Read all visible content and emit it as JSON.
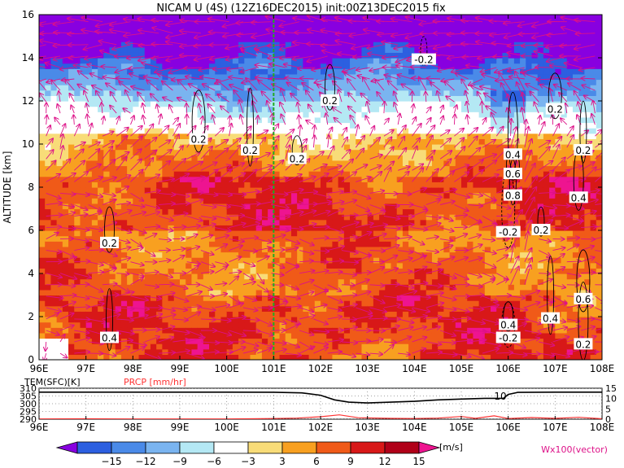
{
  "title": "NICAM U (4S) (12Z16DEC2015) init:00Z13DEC2015 fix",
  "chart_data": [
    {
      "type": "heatmap",
      "variable": "U",
      "x_ticks": [
        "96E",
        "97E",
        "98E",
        "99E",
        "100E",
        "101E",
        "102E",
        "103E",
        "104E",
        "105E",
        "106E",
        "107E",
        "108E"
      ],
      "x_range": [
        96,
        108
      ],
      "ylabel": "ALTITUDE [km]",
      "y_ticks": [
        "0",
        "2",
        "4",
        "6",
        "8",
        "10",
        "12",
        "14",
        "16"
      ],
      "y_range": [
        0,
        16
      ],
      "vertical_reference_line_lon": 101.0,
      "vertical_reference_line_color": "#22aa22",
      "contour_labels": [
        {
          "text": "-0.2",
          "lon": 104.2,
          "alt": 13.9
        },
        {
          "text": "0.2",
          "lon": 102.2,
          "alt": 12.0
        },
        {
          "text": "0.2",
          "lon": 99.4,
          "alt": 10.2
        },
        {
          "text": "0.2",
          "lon": 100.5,
          "alt": 9.7
        },
        {
          "text": "0.2",
          "lon": 101.5,
          "alt": 9.3
        },
        {
          "text": "0.2",
          "lon": 107.0,
          "alt": 11.6
        },
        {
          "text": "0.2",
          "lon": 107.6,
          "alt": 9.7
        },
        {
          "text": "0.4",
          "lon": 106.1,
          "alt": 9.5
        },
        {
          "text": "0.6",
          "lon": 106.1,
          "alt": 8.6
        },
        {
          "text": "0.8",
          "lon": 106.1,
          "alt": 7.6
        },
        {
          "text": "0.4",
          "lon": 107.5,
          "alt": 7.5
        },
        {
          "text": "-0.2",
          "lon": 106.0,
          "alt": 5.9
        },
        {
          "text": "0.2",
          "lon": 106.7,
          "alt": 6.0
        },
        {
          "text": "0.2",
          "lon": 97.5,
          "alt": 5.4
        },
        {
          "text": "0.6",
          "lon": 107.6,
          "alt": 2.8
        },
        {
          "text": "0.4",
          "lon": 106.9,
          "alt": 1.9
        },
        {
          "text": "0.4",
          "lon": 106.0,
          "alt": 1.6
        },
        {
          "text": "-0.2",
          "lon": 106.0,
          "alt": 1.0
        },
        {
          "text": "0.4",
          "lon": 97.5,
          "alt": 1.0
        },
        {
          "text": "0.2",
          "lon": 107.6,
          "alt": 0.7
        }
      ]
    },
    {
      "type": "line",
      "x_ticks": [
        "96E",
        "97E",
        "98E",
        "99E",
        "100E",
        "101E",
        "102E",
        "103E",
        "104E",
        "105E",
        "106E",
        "107E",
        "108E"
      ],
      "x_range": [
        96,
        108
      ],
      "left_label": "TEM(SFC)[K]",
      "right_label": "PRCP [mm/hr]",
      "left_ticks": [
        "290",
        "295",
        "300",
        "305",
        "310"
      ],
      "left_range": [
        290,
        310
      ],
      "right_ticks": [
        "0",
        "5",
        "10",
        "15"
      ],
      "right_range": [
        0,
        15
      ],
      "annotation": "10",
      "series": [
        {
          "name": "TEM(SFC)[K]",
          "color": "#000000",
          "axis": "left",
          "x": [
            96,
            97,
            98,
            99,
            100,
            101,
            101.6,
            102,
            102.3,
            102.6,
            103,
            103.5,
            104,
            104.5,
            105,
            105.5,
            105.9,
            106,
            106.2,
            107,
            108
          ],
          "y": [
            307.5,
            307.5,
            307.5,
            307.5,
            307.5,
            307.4,
            307.0,
            305.5,
            302.5,
            301.0,
            300.5,
            301.0,
            301.5,
            302.5,
            303.0,
            303.5,
            303.5,
            306.0,
            307.3,
            307.5,
            307.5
          ]
        },
        {
          "name": "PRCP [mm/hr]",
          "color": "#ff3333",
          "axis": "right",
          "x": [
            96,
            97,
            98,
            99,
            100,
            101,
            101.5,
            102,
            102.4,
            102.8,
            103.5,
            104,
            104.5,
            105,
            105.3,
            105.7,
            106,
            106.5,
            107,
            107.5,
            108
          ],
          "y": [
            0.1,
            0.2,
            0.1,
            0.1,
            0.1,
            0.3,
            0.5,
            1.2,
            2.1,
            0.7,
            0.4,
            0.3,
            0.5,
            1.3,
            0.4,
            1.6,
            0.3,
            0.8,
            0.4,
            0.9,
            0.2
          ]
        }
      ]
    }
  ],
  "colorbar": {
    "levels": [
      "-15",
      "-12",
      "-9",
      "-6",
      "-3",
      "3",
      "6",
      "9",
      "12",
      "15"
    ],
    "unit": "[m/s]",
    "colors": [
      "#8800e0",
      "#2c5fe0",
      "#4a8ae8",
      "#7ab4f0",
      "#b4e8f4",
      "#ffffff",
      "#f8dc78",
      "#f8a020",
      "#f05a18",
      "#d81818",
      "#b00018",
      "#ee1490"
    ]
  },
  "vector_label": "Wx100(vector)",
  "vector_color": "#dd1188"
}
